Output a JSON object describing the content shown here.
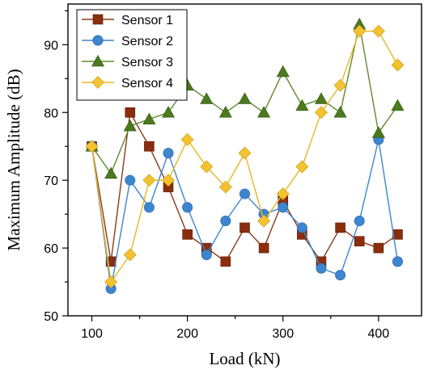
{
  "chart_data": {
    "type": "line",
    "title": "",
    "xlabel": "Load (kN)",
    "ylabel": "Maximum Amplitude (dB)",
    "xlim": [
      75,
      445
    ],
    "ylim": [
      50,
      96
    ],
    "xticks": [
      100,
      200,
      300,
      400
    ],
    "yticks": [
      50,
      60,
      70,
      80,
      90
    ],
    "grid": false,
    "legend_position": "top-left",
    "x": [
      100,
      120,
      140,
      160,
      180,
      200,
      220,
      240,
      260,
      280,
      300,
      320,
      340,
      360,
      380,
      400,
      420
    ],
    "series": [
      {
        "name": "Sensor 1",
        "marker": "square",
        "color": "#8b2e0e",
        "line_color": "#8b3a1a",
        "values": [
          75,
          58,
          80,
          75,
          69,
          62,
          60,
          58,
          63,
          60,
          67,
          62,
          58,
          63,
          61,
          60,
          62
        ]
      },
      {
        "name": "Sensor 2",
        "marker": "circle",
        "color": "#3d86cf",
        "line_color": "#3d86cf",
        "values": [
          75,
          54,
          70,
          66,
          74,
          66,
          59,
          64,
          68,
          65,
          66,
          63,
          57,
          56,
          64,
          76,
          58
        ]
      },
      {
        "name": "Sensor 3",
        "marker": "triangle",
        "color": "#4b7a1e",
        "line_color": "#5e8a2e",
        "values": [
          75,
          71,
          78,
          79,
          80,
          84,
          82,
          80,
          82,
          80,
          86,
          81,
          82,
          80,
          93,
          77,
          81
        ]
      },
      {
        "name": "Sensor 4",
        "marker": "diamond",
        "color": "#f2c230",
        "line_color": "#e8b820",
        "values": [
          75,
          55,
          59,
          70,
          70,
          76,
          72,
          69,
          74,
          64,
          68,
          72,
          80,
          84,
          92,
          92,
          87
        ]
      }
    ]
  }
}
